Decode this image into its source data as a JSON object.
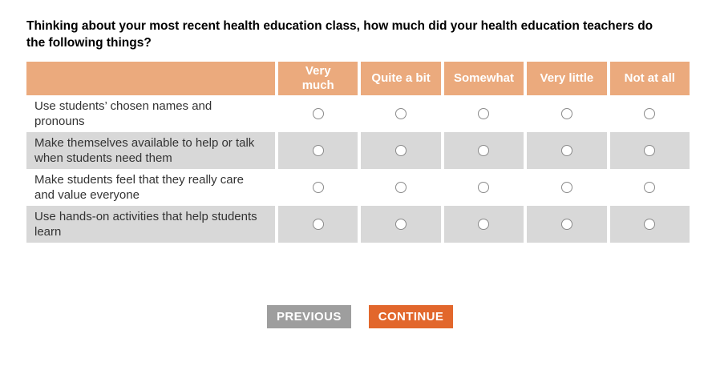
{
  "question": {
    "text": "Thinking about your most recent health education class, how much did your health education teachers do the following things?"
  },
  "table": {
    "columns": [
      "Very\nmuch",
      "Quite a bit",
      "Somewhat",
      "Very little",
      "Not at all"
    ],
    "rows": [
      {
        "label": "Use students’ chosen names and pronouns"
      },
      {
        "label": "Make themselves available to help or talk when students need them"
      },
      {
        "label": "Make students feel that they really care and value everyone"
      },
      {
        "label": "Use hands-on activities that help students learn"
      }
    ],
    "selections": [
      null,
      null,
      null,
      null
    ]
  },
  "buttons": {
    "previous": "PREVIOUS",
    "continue": "CONTINUE"
  },
  "colors": {
    "header_bg": "#EBAA7D",
    "row_alt_bg": "#D8D8D8",
    "previous_bg": "#9E9E9E",
    "continue_bg": "#E2672C",
    "header_text": "#FFFFFF",
    "label_text": "#333333"
  }
}
